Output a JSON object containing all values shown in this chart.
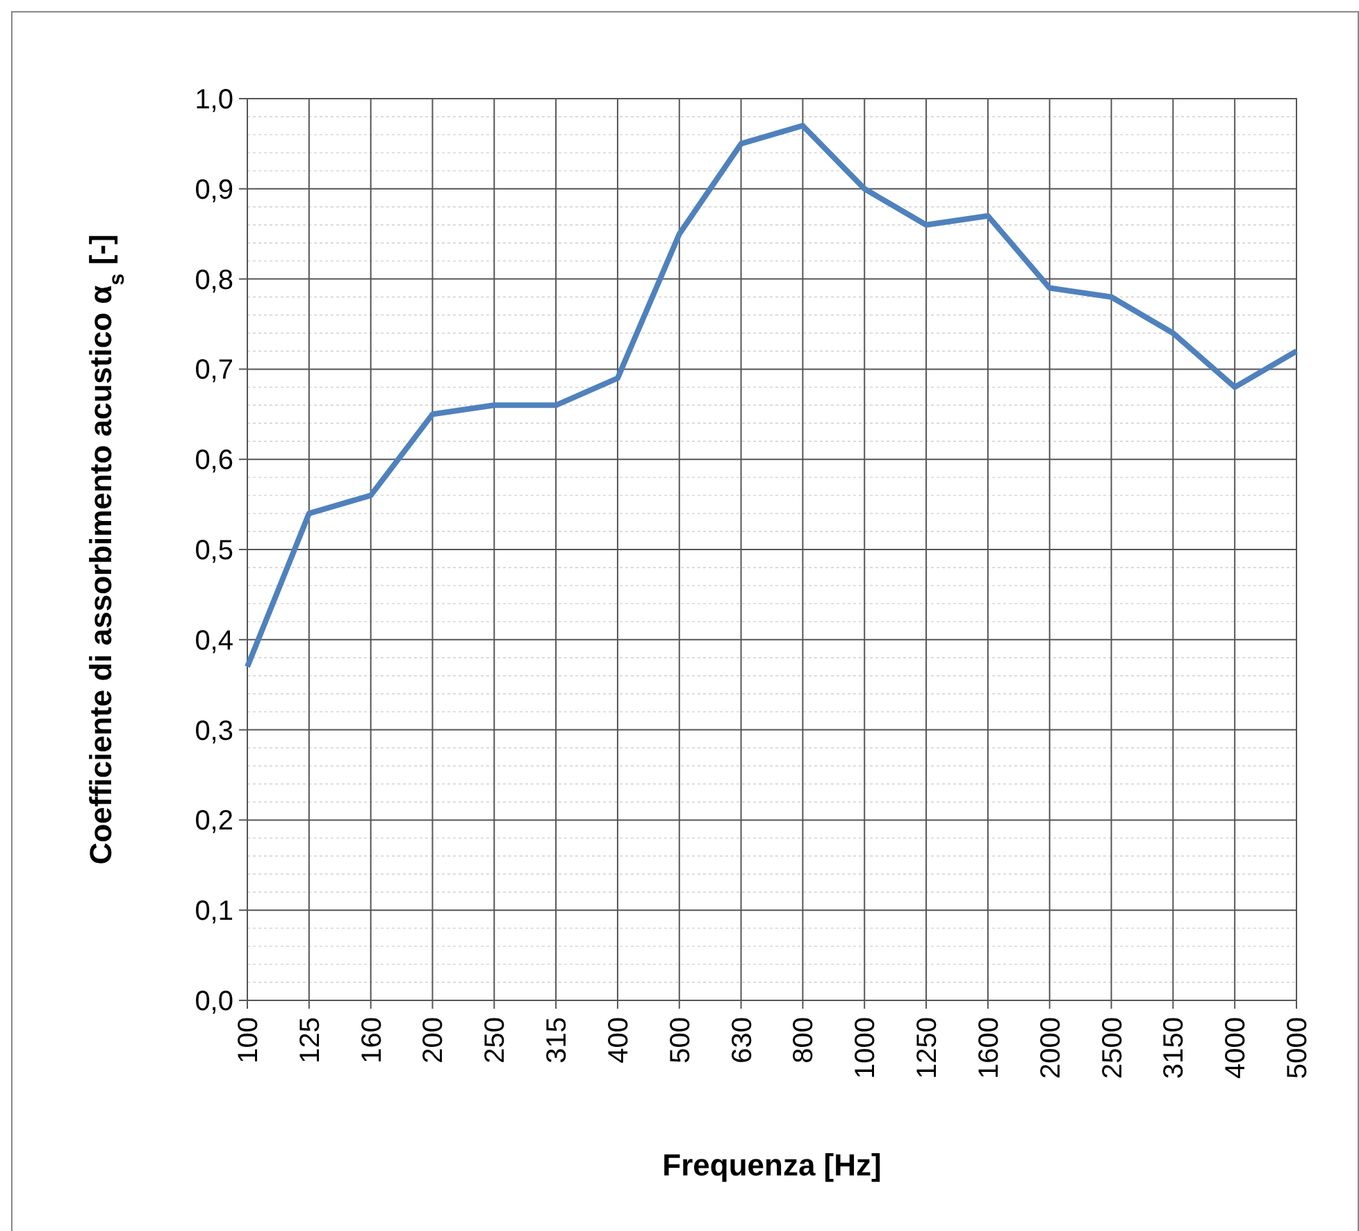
{
  "chart_data": {
    "type": "line",
    "xlabel": "Frequenza [Hz]",
    "ylabel": "Coefficiente di assorbimento acustico α$_{s}$ [-]",
    "categories": [
      "100",
      "125",
      "160",
      "200",
      "250",
      "315",
      "400",
      "500",
      "630",
      "800",
      "1000",
      "1250",
      "1600",
      "2000",
      "2500",
      "3150",
      "4000",
      "5000"
    ],
    "series": [
      {
        "color": "#4f81bd",
        "values": [
          0.37,
          0.54,
          0.56,
          0.65,
          0.66,
          0.66,
          0.69,
          0.85,
          0.95,
          0.97,
          0.9,
          0.86,
          0.87,
          0.79,
          0.78,
          0.74,
          0.68,
          0.72
        ]
      }
    ],
    "ylim": [
      0,
      1
    ],
    "yticks": [
      {
        "value": 0,
        "label": "0,0"
      },
      {
        "value": 0.02,
        "label": null
      },
      {
        "value": 0.04,
        "label": null
      },
      {
        "value": 0.06,
        "label": null
      },
      {
        "value": 0.08,
        "label": null
      },
      {
        "value": 0.1,
        "label": "0,1"
      },
      {
        "value": 0.12,
        "label": null
      },
      {
        "value": 0.14,
        "label": null
      },
      {
        "value": 0.16,
        "label": null
      },
      {
        "value": 0.18,
        "label": null
      },
      {
        "value": 0.2,
        "label": "0,2"
      },
      {
        "value": 0.22,
        "label": null
      },
      {
        "value": 0.24,
        "label": null
      },
      {
        "value": 0.26,
        "label": null
      },
      {
        "value": 0.28,
        "label": null
      },
      {
        "value": 0.3,
        "label": "0,3"
      },
      {
        "value": 0.32,
        "label": null
      },
      {
        "value": 0.34,
        "label": null
      },
      {
        "value": 0.36,
        "label": null
      },
      {
        "value": 0.38,
        "label": null
      },
      {
        "value": 0.4,
        "label": "0,4"
      },
      {
        "value": 0.42,
        "label": null
      },
      {
        "value": 0.44,
        "label": null
      },
      {
        "value": 0.46,
        "label": null
      },
      {
        "value": 0.48,
        "label": null
      },
      {
        "value": 0.5,
        "label": "0,5"
      },
      {
        "value": 0.52,
        "label": null
      },
      {
        "value": 0.54,
        "label": null
      },
      {
        "value": 0.56,
        "label": null
      },
      {
        "value": 0.58,
        "label": null
      },
      {
        "value": 0.6,
        "label": "0,6"
      },
      {
        "value": 0.62,
        "label": null
      },
      {
        "value": 0.64,
        "label": null
      },
      {
        "value": 0.66,
        "label": null
      },
      {
        "value": 0.68,
        "label": null
      },
      {
        "value": 0.7,
        "label": "0,7"
      },
      {
        "value": 0.72,
        "label": null
      },
      {
        "value": 0.74,
        "label": null
      },
      {
        "value": 0.76,
        "label": null
      },
      {
        "value": 0.78,
        "label": null
      },
      {
        "value": 0.8,
        "label": "0,8"
      },
      {
        "value": 0.82,
        "label": null
      },
      {
        "value": 0.84,
        "label": null
      },
      {
        "value": 0.86,
        "label": null
      },
      {
        "value": 0.88,
        "label": null
      },
      {
        "value": 0.9,
        "label": "0,9"
      },
      {
        "value": 0.92,
        "label": null
      },
      {
        "value": 0.94,
        "label": null
      },
      {
        "value": 0.96,
        "label": null
      },
      {
        "value": 0.98,
        "label": null
      },
      {
        "value": 1,
        "label": "1,0"
      }
    ],
    "grid": true,
    "marker": "none",
    "line_style": "solid"
  }
}
